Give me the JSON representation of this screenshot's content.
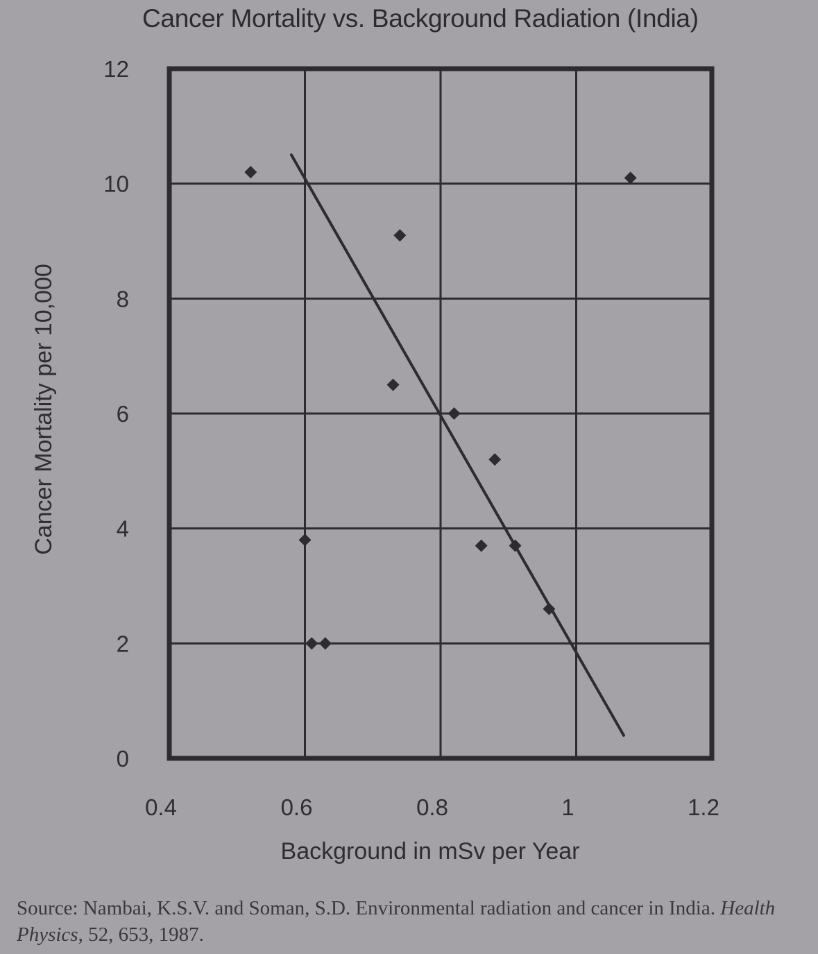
{
  "chart_data": {
    "type": "scatter",
    "title": "Cancer Mortality vs. Background Radiation (India)",
    "xlabel": "Background in mSv per Year",
    "ylabel": "Cancer Mortality per 10,000",
    "xlim": [
      0.4,
      1.2
    ],
    "ylim": [
      0,
      12
    ],
    "x_ticks": [
      "0.4",
      "0.6",
      "0.8",
      "1",
      "1.2"
    ],
    "y_ticks": [
      "0",
      "2",
      "4",
      "6",
      "8",
      "10",
      "12"
    ],
    "grid": true,
    "points": [
      {
        "x": 0.52,
        "y": 10.2
      },
      {
        "x": 0.6,
        "y": 3.8
      },
      {
        "x": 0.61,
        "y": 2.0
      },
      {
        "x": 0.63,
        "y": 2.0
      },
      {
        "x": 0.74,
        "y": 9.1
      },
      {
        "x": 0.73,
        "y": 6.5
      },
      {
        "x": 0.82,
        "y": 6.0
      },
      {
        "x": 0.88,
        "y": 5.2
      },
      {
        "x": 0.86,
        "y": 3.7
      },
      {
        "x": 0.91,
        "y": 3.7
      },
      {
        "x": 0.96,
        "y": 2.6
      },
      {
        "x": 1.08,
        "y": 10.1
      }
    ],
    "trendline": {
      "x": [
        0.58,
        1.07
      ],
      "y": [
        10.5,
        0.4
      ]
    },
    "colors": {
      "marks": "#2e2b30",
      "grid": "#2e2b30",
      "background": "#a4a2a6"
    }
  },
  "source": {
    "prefix": "Source: Nambai, K.S.V. and Soman, S.D. Environmental radiation and cancer in India.",
    "journal": "Health Physics",
    "suffix": ", 52, 653, 1987."
  }
}
